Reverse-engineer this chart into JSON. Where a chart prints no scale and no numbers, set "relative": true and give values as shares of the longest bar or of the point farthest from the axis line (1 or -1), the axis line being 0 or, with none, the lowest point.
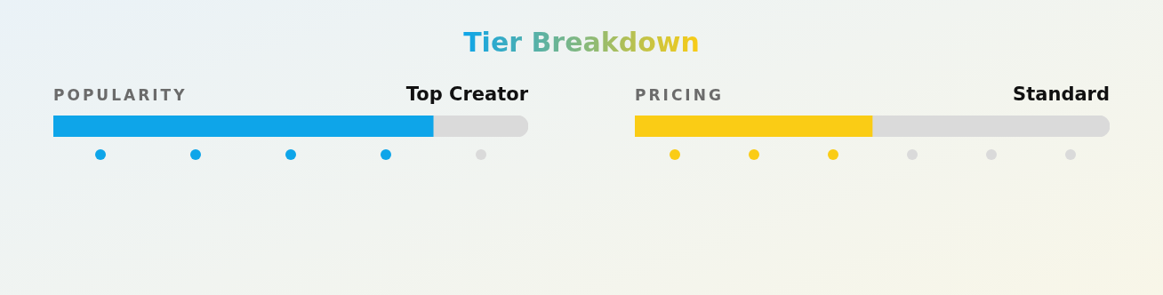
{
  "chart_data": [
    {
      "type": "other",
      "title": "Tier Breakdown"
    },
    {
      "type": "bar",
      "orientation": "horizontal",
      "stacked": true,
      "relative": true,
      "title": "POPULARITY",
      "subtitle": "Top Creator",
      "categories": [
        null
      ],
      "tick_labels": false,
      "legend": false,
      "series": [
        {
          "color": "#0ea5e9",
          "values": [
            0.8
          ]
        },
        {
          "color": "#dadada",
          "values": [
            0.2
          ]
        }
      ]
    },
    {
      "type": "other",
      "categories": [
        null,
        null,
        null,
        null,
        null
      ],
      "colors": [
        "#0ea5e9",
        "#0ea5e9",
        "#0ea5e9",
        "#0ea5e9",
        "#dadada"
      ]
    },
    {
      "type": "bar",
      "orientation": "horizontal",
      "stacked": true,
      "relative": true,
      "title": "PRICING",
      "subtitle": "Standard",
      "categories": [
        null
      ],
      "tick_labels": false,
      "legend": false,
      "series": [
        {
          "color": "#facc15",
          "values": [
            0.5
          ]
        },
        {
          "color": "#dadada",
          "values": [
            0.5
          ]
        }
      ]
    },
    {
      "type": "other",
      "categories": [
        null,
        null,
        null,
        null,
        null,
        null
      ],
      "colors": [
        "#facc15",
        "#facc15",
        "#facc15",
        "#dadada",
        "#dadada",
        "#dadada"
      ]
    }
  ]
}
